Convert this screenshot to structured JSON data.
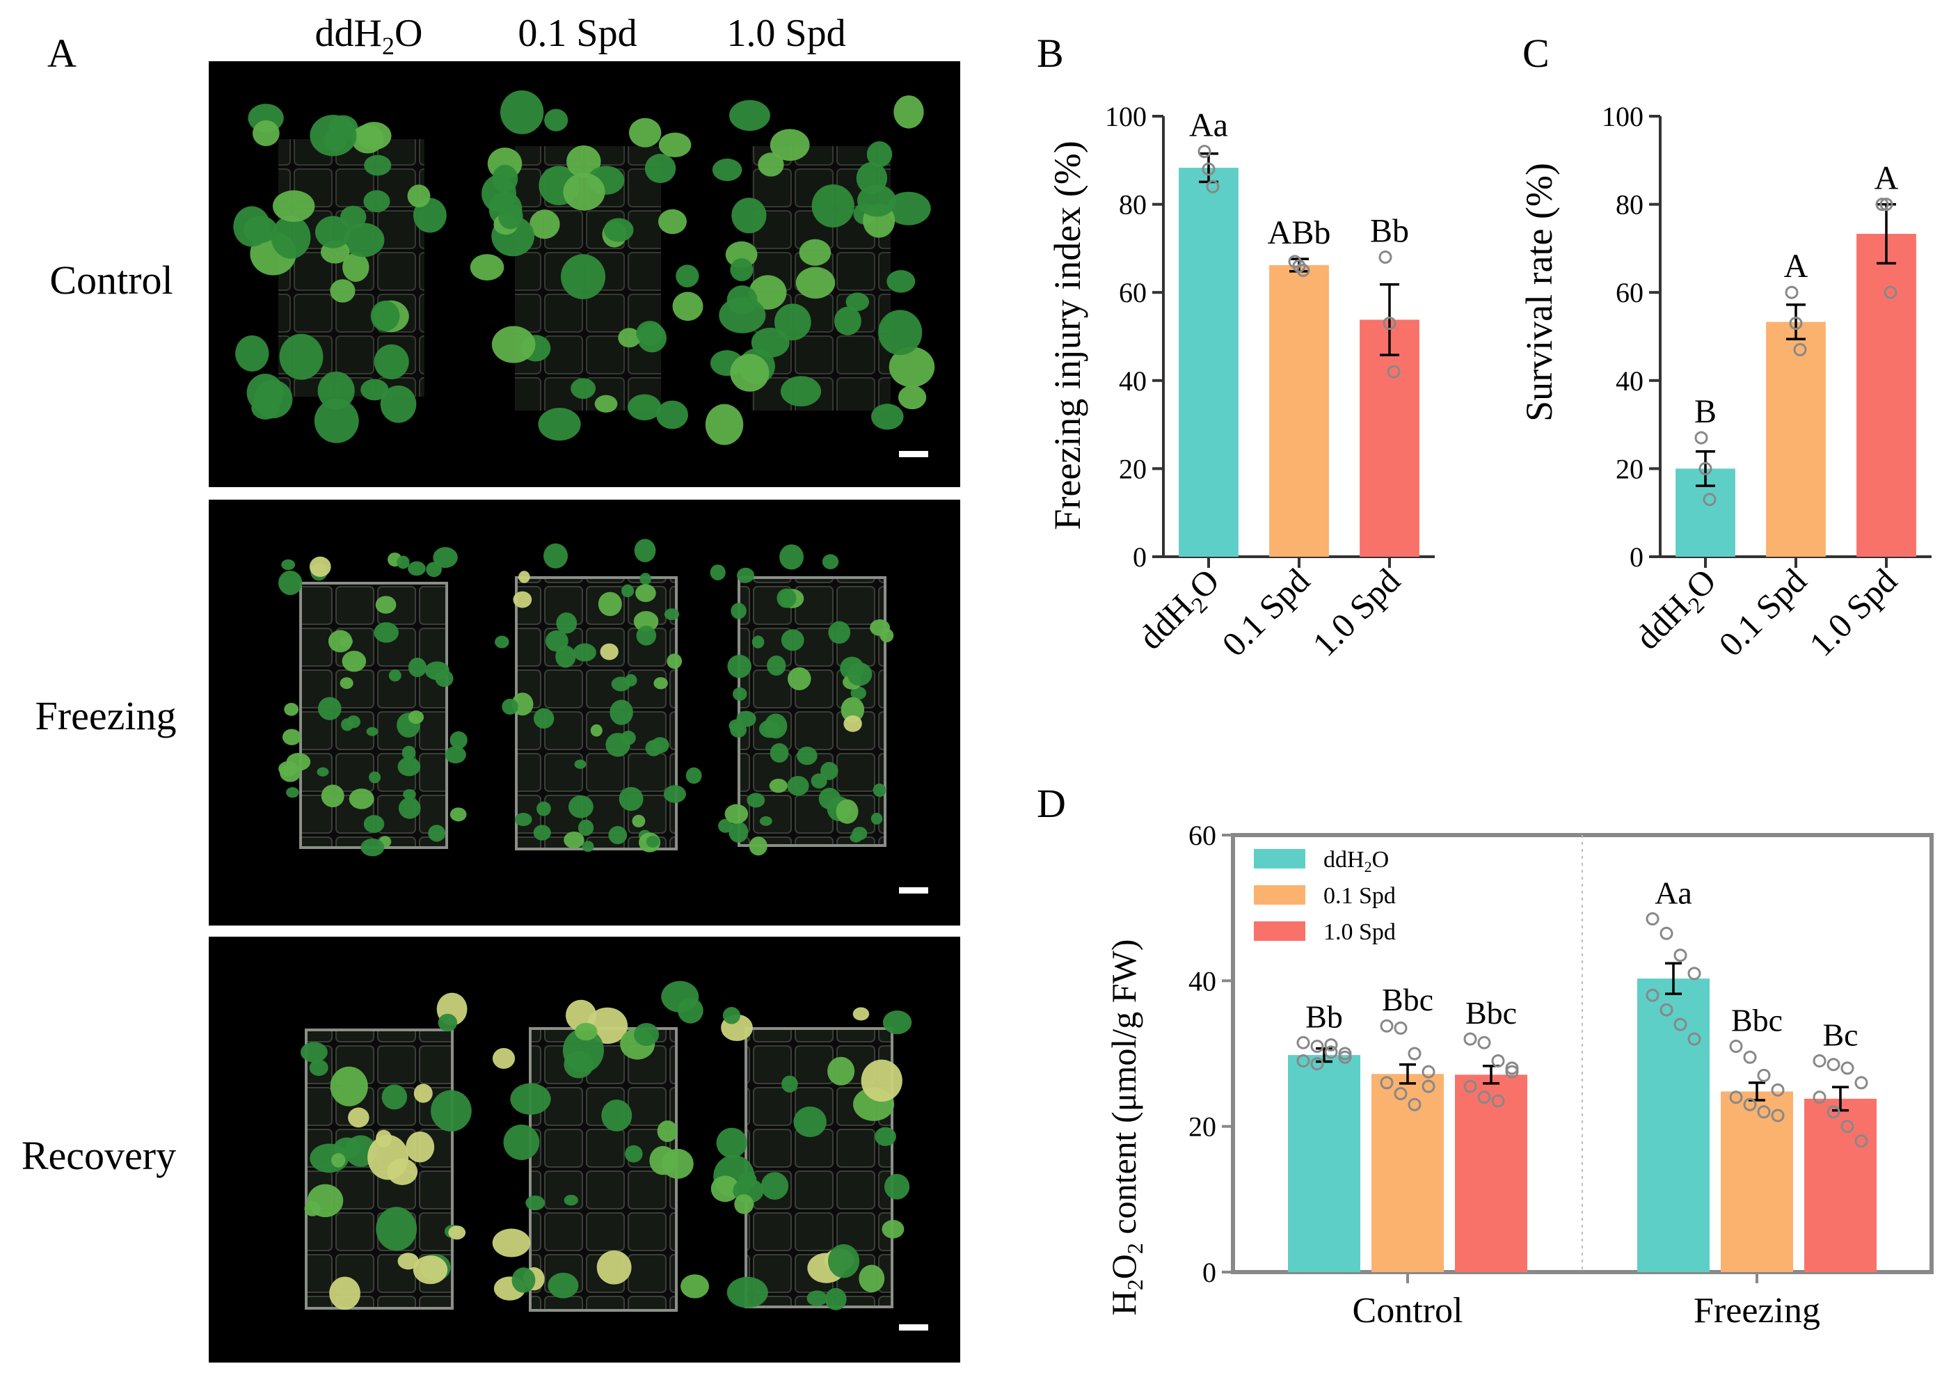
{
  "panel_letters": {
    "A": "A",
    "B": "B",
    "C": "C",
    "D": "D"
  },
  "panel_a": {
    "column_labels": [
      {
        "base": "ddH",
        "sub": "2",
        "tail": "O"
      },
      {
        "base": "0.1 Spd",
        "sub": "",
        "tail": ""
      },
      {
        "base": "1.0 Spd",
        "sub": "",
        "tail": ""
      }
    ],
    "row_labels": [
      "Control",
      "Freezing",
      "Recovery"
    ],
    "colors": {
      "background": "#000000",
      "leaf": "#2f8a3a",
      "leaf_light": "#5fb04a",
      "yellow": "#c9d27a",
      "scale_bar": "#ffffff"
    }
  },
  "colors": {
    "ddH2O": "#5ecfc7",
    "spd01": "#fbb26f",
    "spd10": "#f9726a",
    "axis": "#333333",
    "dot": "#888888"
  },
  "chart_data": [
    {
      "id": "B",
      "type": "bar",
      "ylabel": "Freezing injury index (%)",
      "ylim": [
        0,
        100
      ],
      "yticks": [
        0,
        20,
        40,
        60,
        80,
        100
      ],
      "categories": [
        {
          "base": "ddH",
          "sub": "2",
          "tail": "O"
        },
        {
          "base": "0.1 Spd",
          "sub": "",
          "tail": ""
        },
        {
          "base": "1.0 Spd",
          "sub": "",
          "tail": ""
        }
      ],
      "values": [
        88.3,
        66.2,
        53.8
      ],
      "errors": [
        3.2,
        1.4,
        8.0
      ],
      "letters": [
        "Aa",
        "ABb",
        "Bb"
      ],
      "points": [
        [
          92,
          88,
          84
        ],
        [
          67,
          66,
          65
        ],
        [
          68,
          53,
          42
        ]
      ]
    },
    {
      "id": "C",
      "type": "bar",
      "ylabel": "Survival rate (%)",
      "ylim": [
        0,
        100
      ],
      "yticks": [
        0,
        20,
        40,
        60,
        80,
        100
      ],
      "categories": [
        {
          "base": "ddH",
          "sub": "2",
          "tail": "O"
        },
        {
          "base": "0.1 Spd",
          "sub": "",
          "tail": ""
        },
        {
          "base": "1.0 Spd",
          "sub": "",
          "tail": ""
        }
      ],
      "values": [
        20.0,
        53.3,
        73.3
      ],
      "errors": [
        3.9,
        3.9,
        6.7
      ],
      "letters": [
        "B",
        "A",
        "A"
      ],
      "points": [
        [
          27,
          20,
          13
        ],
        [
          60,
          53,
          47
        ],
        [
          80,
          80,
          60
        ]
      ]
    },
    {
      "id": "D",
      "type": "bar",
      "ylabel": {
        "base": "H",
        "sub1": "2",
        "mid": "O",
        "sub2": "2",
        "tail": " content (μmol/g FW)"
      },
      "ylim": [
        0,
        60
      ],
      "yticks": [
        0,
        20,
        40,
        60
      ],
      "groups": [
        "Control",
        "Freezing"
      ],
      "series": [
        {
          "name": {
            "base": "ddH",
            "sub": "2",
            "tail": "O"
          },
          "values": [
            29.8,
            40.3
          ],
          "errors": [
            0.9,
            2.1
          ],
          "letters": [
            "Bb",
            "Aa"
          ],
          "points": [
            [
              31.5,
              31.0,
              30.2,
              29.5,
              29.0,
              28.6,
              31.2,
              30.0
            ],
            [
              48.5,
              46.5,
              43.5,
              41.0,
              38.0,
              36.0,
              34.0,
              32.0
            ]
          ]
        },
        {
          "name": {
            "base": "0.1 Spd",
            "sub": "",
            "tail": ""
          },
          "values": [
            27.2,
            24.8
          ],
          "errors": [
            1.3,
            1.2
          ],
          "letters": [
            "Bbc",
            "Bbc"
          ],
          "points": [
            [
              33.8,
              33.5,
              30.0,
              27.5,
              26.0,
              24.5,
              23.0,
              25.5
            ],
            [
              31.0,
              29.5,
              27.0,
              25.0,
              24.0,
              23.0,
              22.0,
              21.5
            ]
          ]
        },
        {
          "name": {
            "base": "1.0 Spd",
            "sub": "",
            "tail": ""
          },
          "values": [
            27.1,
            23.8
          ],
          "errors": [
            1.2,
            1.6
          ],
          "letters": [
            "Bbc",
            "Bc"
          ],
          "points": [
            [
              32.0,
              31.5,
              29.0,
              27.5,
              25.5,
              24.0,
              23.5,
              28.0
            ],
            [
              29.0,
              28.5,
              28.0,
              26.0,
              24.0,
              22.0,
              20.0,
              18.0
            ]
          ]
        }
      ],
      "legend_position": "top-left"
    }
  ]
}
